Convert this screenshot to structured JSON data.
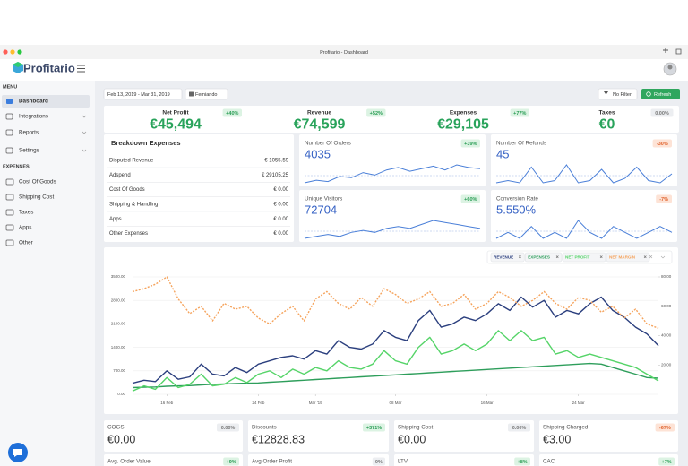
{
  "window": {
    "title": "Profitario - Dashboard"
  },
  "header": {
    "logo": "Profitario"
  },
  "sidebar": {
    "menu_heading": "MENU",
    "menu": [
      "Dashboard",
      "Integrations",
      "Reports",
      "Settings"
    ],
    "expenses_heading": "EXPENSES",
    "expenses": [
      "Cost Of Goods",
      "Shipping Cost",
      "Taxes",
      "Apps",
      "Other"
    ]
  },
  "toolbar": {
    "date_range": "Feb 13, 2019 - Mar 31, 2019",
    "store": "Femiando",
    "filter": "No Filter",
    "refresh": "Refresh"
  },
  "kpis": [
    {
      "label": "Net Profit",
      "value": "€45,494",
      "change": "+40%"
    },
    {
      "label": "Revenue",
      "value": "€74,599",
      "change": "+52%"
    },
    {
      "label": "Expenses",
      "value": "€29,105",
      "change": "+77%"
    },
    {
      "label": "Taxes",
      "value": "€0",
      "change": "0.00%"
    }
  ],
  "breakdown": {
    "title": "Breakdown Expenses",
    "rows": [
      [
        "Disputed Revenue",
        "€ 1055.59"
      ],
      [
        "Adspend",
        "€ 29105.25"
      ],
      [
        "Cost Of Goods",
        "€ 0.00"
      ],
      [
        "Shipping & Handling",
        "€ 0.00"
      ],
      [
        "Apps",
        "€ 0.00"
      ],
      [
        "Other Expenses",
        "€ 0.00"
      ]
    ]
  },
  "cards": [
    {
      "label": "Number Of Orders",
      "value": "4035",
      "change": "+39%",
      "sparkline": [
        20,
        22,
        21,
        25,
        24,
        28,
        26,
        30,
        32,
        29,
        31,
        33,
        30,
        34,
        32,
        31
      ]
    },
    {
      "label": "Number Of Refunds",
      "value": "45",
      "change": "-30%",
      "sparkline": [
        2,
        3,
        2,
        9,
        2,
        3,
        10,
        2,
        3,
        8,
        2,
        4,
        9,
        3,
        2,
        6
      ]
    },
    {
      "label": "Unique Visitors",
      "value": "72704",
      "change": "+60%",
      "sparkline": [
        10,
        11,
        12,
        11,
        13,
        14,
        13,
        15,
        16,
        15,
        17,
        19,
        18,
        17,
        16,
        15
      ]
    },
    {
      "label": "Conversion Rate",
      "value": "5.550%",
      "change": "-7%",
      "sparkline": [
        5,
        6,
        5,
        7,
        5,
        6,
        5,
        8,
        6,
        5,
        7,
        6,
        5,
        6,
        7,
        6
      ]
    }
  ],
  "chart_data": {
    "type": "line",
    "categories": [
      null,
      null,
      null,
      "16 Feb",
      null,
      null,
      null,
      null,
      null,
      null,
      null,
      "24 Feb",
      null,
      null,
      null,
      null,
      "Mar '19",
      null,
      null,
      null,
      null,
      null,
      null,
      "08 Mar",
      null,
      null,
      null,
      null,
      null,
      null,
      null,
      "16 Mar",
      null,
      null,
      null,
      null,
      null,
      null,
      null,
      "24 Mar",
      null,
      null,
      null,
      null,
      null,
      null,
      null
    ],
    "series": [
      {
        "name": "REVENUE",
        "color": "#2b3f7e",
        "values": [
          330,
          420,
          380,
          700,
          450,
          520,
          900,
          600,
          550,
          800,
          650,
          900,
          1000,
          1100,
          1150,
          1050,
          1300,
          1200,
          1600,
          1400,
          1350,
          1500,
          1900,
          1700,
          1600,
          2200,
          2500,
          2000,
          2100,
          2300,
          2200,
          2400,
          2700,
          2500,
          2900,
          2600,
          2800,
          2300,
          2500,
          2400,
          2700,
          2900,
          2500,
          2300,
          2000,
          1800,
          1450
        ]
      },
      {
        "name": "EXPENSES",
        "color": "#2e9e5b",
        "values": [
          200,
          210,
          220,
          240,
          250,
          260,
          280,
          300,
          310,
          320,
          330,
          340,
          360,
          380,
          400,
          420,
          440,
          460,
          480,
          500,
          520,
          540,
          560,
          580,
          600,
          620,
          640,
          660,
          680,
          700,
          720,
          740,
          760,
          780,
          800,
          820,
          840,
          860,
          880,
          900,
          920,
          900,
          800,
          700,
          600,
          500,
          480
        ]
      },
      {
        "name": "NET PROFIT",
        "color": "#55d468",
        "values": [
          100,
          250,
          150,
          500,
          200,
          300,
          600,
          250,
          300,
          500,
          350,
          600,
          700,
          500,
          750,
          600,
          800,
          700,
          1000,
          800,
          750,
          900,
          1300,
          1000,
          900,
          1400,
          1700,
          1200,
          1300,
          1500,
          1300,
          1500,
          1900,
          1600,
          1900,
          1600,
          1700,
          1200,
          1300,
          1100,
          1200,
          1100,
          1000,
          900,
          800,
          600,
          400
        ]
      },
      {
        "name": "NET MARGIN",
        "color": "#f5a35c",
        "axis": "y2",
        "dashed": true,
        "values": [
          70,
          72,
          75,
          80,
          65,
          55,
          60,
          50,
          62,
          58,
          60,
          52,
          48,
          55,
          60,
          50,
          65,
          70,
          62,
          58,
          66,
          60,
          72,
          68,
          62,
          65,
          70,
          60,
          62,
          68,
          58,
          62,
          70,
          66,
          60,
          64,
          70,
          62,
          58,
          66,
          64,
          56,
          60,
          52,
          58,
          48,
          45
        ]
      }
    ],
    "ylim": [
      0,
      3500
    ],
    "yticks": [
      {
        "value": 0,
        "label": "0.00"
      },
      {
        "value": 700,
        "label": "700.00"
      },
      {
        "value": 1400,
        "label": "1400.00"
      },
      {
        "value": 2100,
        "label": "2100.00"
      },
      {
        "value": 2800,
        "label": "2800.00"
      },
      {
        "value": 3500,
        "label": "3500.00"
      }
    ],
    "y2lim": [
      0,
      80
    ],
    "y2ticks": [
      {
        "value": 20,
        "label": "20.00"
      },
      {
        "value": 40,
        "label": "40.00"
      },
      {
        "value": 60,
        "label": "60.00"
      },
      {
        "value": 80,
        "label": "80.00"
      }
    ],
    "grid": true
  },
  "bottom_cards": [
    {
      "label": "COGS",
      "value": "€0.00",
      "change": "0.00%"
    },
    {
      "label": "Discounts",
      "value": "€12828.83",
      "change": "+371%"
    },
    {
      "label": "Shipping Cost",
      "value": "€0.00",
      "change": "0.00%"
    },
    {
      "label": "Shipping Charged",
      "value": "€3.00",
      "change": "-67%"
    },
    {
      "label": "Avg. Order Value",
      "change": "+9%"
    },
    {
      "label": "Avg Order Profit",
      "change": "0%"
    },
    {
      "label": "LTV",
      "change": "+8%"
    },
    {
      "label": "CAC",
      "change": "+7%"
    }
  ]
}
